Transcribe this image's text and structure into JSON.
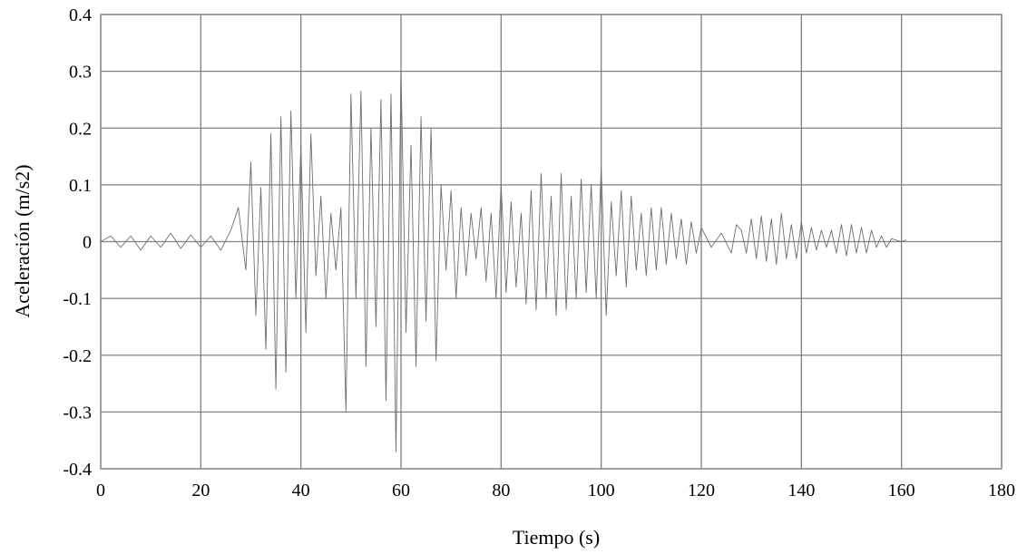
{
  "chart_data": {
    "type": "line",
    "title": "",
    "xlabel": "Tiempo (s)",
    "ylabel": "Aceleración (m/s2)",
    "xlim": [
      0,
      180
    ],
    "ylim": [
      -0.4,
      0.4
    ],
    "x_ticks": [
      0,
      20,
      40,
      60,
      80,
      100,
      120,
      140,
      160,
      180
    ],
    "y_ticks": [
      0.4,
      0.3,
      0.2,
      0.1,
      0,
      -0.1,
      -0.2,
      -0.3,
      -0.4
    ],
    "x_tick_labels": [
      "0",
      "20",
      "40",
      "60",
      "80",
      "100",
      "120",
      "140",
      "160",
      "180"
    ],
    "y_tick_labels": [
      "0.4",
      "0.3",
      "0.2",
      "0.1",
      "0",
      "-0.1",
      "-0.2",
      "-0.3",
      "-0.4"
    ],
    "grid": true,
    "legend": "none",
    "line_color": "#6e6e6e",
    "grid_color": "#808080",
    "series": [
      {
        "x": [
          0,
          2,
          4,
          6,
          8,
          10,
          12,
          14,
          16,
          18,
          20,
          22,
          24,
          26,
          27.5,
          29,
          30,
          31,
          32,
          33,
          34,
          35,
          36,
          37,
          38,
          39,
          40,
          41,
          42,
          43,
          44,
          45,
          46,
          47,
          48,
          49,
          50,
          51,
          52,
          53,
          54,
          55,
          56,
          57,
          58,
          59,
          60,
          61,
          62,
          63,
          64,
          65,
          66,
          67,
          68,
          69,
          70,
          71,
          72,
          73,
          74,
          75,
          76,
          77,
          78,
          79,
          80,
          81,
          82,
          83,
          84,
          85,
          86,
          87,
          88,
          89,
          90,
          91,
          92,
          93,
          94,
          95,
          96,
          97,
          98,
          99,
          100,
          101,
          102,
          103,
          104,
          105,
          106,
          107,
          108,
          109,
          110,
          111,
          112,
          113,
          114,
          115,
          116,
          117,
          118,
          119,
          120,
          122,
          124,
          126,
          127,
          128,
          129,
          130,
          131,
          132,
          133,
          134,
          135,
          136,
          137,
          138,
          139,
          140,
          141,
          142,
          143,
          144,
          145,
          146,
          147,
          148,
          149,
          150,
          151,
          152,
          153,
          154,
          155,
          156,
          157,
          158,
          160,
          161
        ],
        "y": [
          0.0,
          0.01,
          -0.01,
          0.01,
          -0.015,
          0.01,
          -0.01,
          0.015,
          -0.012,
          0.012,
          -0.01,
          0.01,
          -0.015,
          0.02,
          0.06,
          -0.05,
          0.14,
          -0.13,
          0.095,
          -0.19,
          0.19,
          -0.26,
          0.22,
          -0.23,
          0.23,
          -0.1,
          0.17,
          -0.16,
          0.19,
          -0.06,
          0.08,
          -0.1,
          0.05,
          -0.05,
          0.06,
          -0.3,
          0.26,
          -0.1,
          0.265,
          -0.22,
          0.2,
          -0.15,
          0.25,
          -0.28,
          0.26,
          -0.37,
          0.3,
          -0.16,
          0.17,
          -0.22,
          0.22,
          -0.14,
          0.2,
          -0.21,
          0.1,
          -0.05,
          0.09,
          -0.1,
          0.06,
          -0.06,
          0.05,
          -0.03,
          0.06,
          -0.07,
          0.05,
          -0.1,
          0.1,
          -0.09,
          0.07,
          -0.08,
          0.05,
          -0.11,
          0.09,
          -0.12,
          0.12,
          -0.1,
          0.08,
          -0.13,
          0.12,
          -0.12,
          0.08,
          -0.1,
          0.11,
          -0.09,
          0.1,
          -0.1,
          0.13,
          -0.13,
          0.07,
          -0.06,
          0.09,
          -0.08,
          0.08,
          -0.05,
          0.05,
          -0.06,
          0.06,
          -0.05,
          0.06,
          -0.04,
          0.05,
          -0.03,
          0.04,
          -0.04,
          0.035,
          -0.02,
          0.025,
          -0.01,
          0.015,
          -0.02,
          0.03,
          0.02,
          -0.02,
          0.04,
          -0.03,
          0.045,
          -0.035,
          0.04,
          -0.04,
          0.05,
          -0.03,
          0.03,
          -0.03,
          0.035,
          -0.02,
          0.025,
          -0.015,
          0.02,
          -0.01,
          0.02,
          -0.02,
          0.03,
          -0.025,
          0.03,
          -0.02,
          0.025,
          -0.02,
          0.02,
          -0.01,
          0.01,
          -0.01,
          0.005,
          0.0,
          0.003
        ]
      }
    ]
  }
}
